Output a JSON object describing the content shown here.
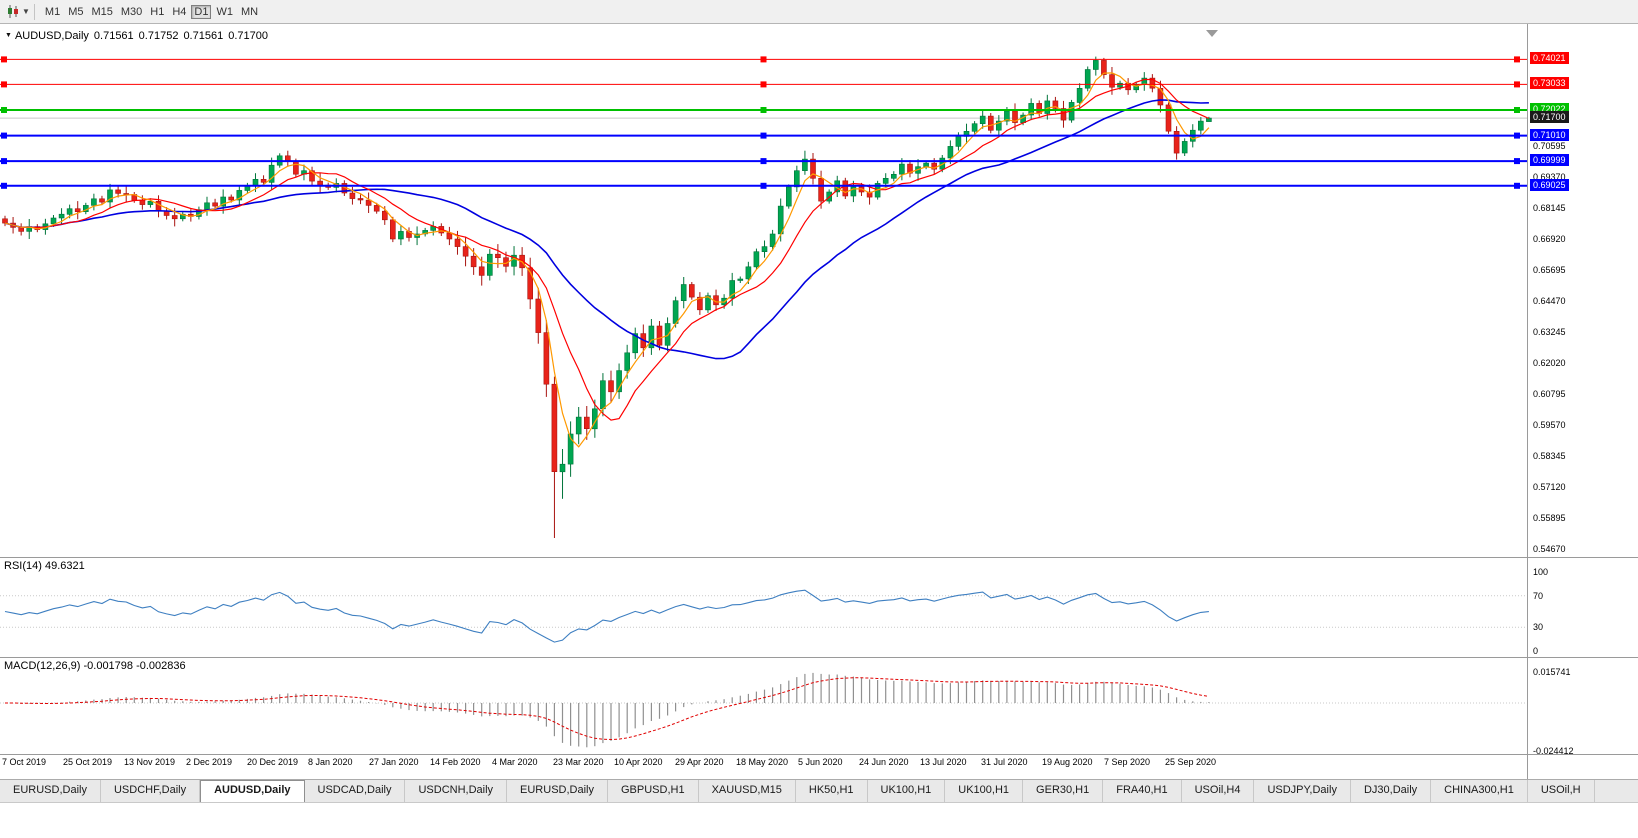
{
  "toolbar": {
    "chart_tool_icon": "candlestick-chart-icon",
    "dropdown_icon": "chevron-down-icon",
    "timeframes": [
      "M1",
      "M5",
      "M15",
      "M30",
      "H1",
      "H4",
      "D1",
      "W1",
      "MN"
    ],
    "selected_timeframe": "D1"
  },
  "chart_data": {
    "type": "candlestick",
    "title": "AUDUSD,Daily",
    "ohlc_display": {
      "open": "0.71561",
      "high": "0.71752",
      "low": "0.71561",
      "close": "0.71700"
    },
    "price_range_visible": [
      0.5431,
      0.7542
    ],
    "current_price": 0.717,
    "current_price_label": "0.71700",
    "current_price_badge_color": "#1a1a1a",
    "bull_color": "#00A651",
    "bear_color": "#E8231A",
    "horizontal_lines": [
      {
        "price": 0.74021,
        "label": "0.74021",
        "color": "#FF0000",
        "width": 1
      },
      {
        "price": 0.73033,
        "label": "0.73033",
        "color": "#FF0000",
        "width": 1
      },
      {
        "price": 0.72022,
        "label": "0.72022",
        "color": "#00C000",
        "width": 2
      },
      {
        "price": 0.7101,
        "label": "0.71010",
        "color": "#0000FF",
        "width": 2
      },
      {
        "price": 0.69999,
        "label": "0.69999",
        "color": "#0000FF",
        "width": 2
      },
      {
        "price": 0.69025,
        "label": "0.69025",
        "color": "#0000FF",
        "width": 2
      }
    ],
    "price_axis_ticks": [
      "0.70595",
      "0.69370",
      "0.68145",
      "0.66920",
      "0.65695",
      "0.64470",
      "0.63245",
      "0.62020",
      "0.60795",
      "0.59570",
      "0.58345",
      "0.57120",
      "0.55895",
      "0.54670"
    ],
    "x_axis_labels": [
      "7 Oct 2019",
      "25 Oct 2019",
      "13 Nov 2019",
      "2 Dec 2019",
      "20 Dec 2019",
      "8 Jan 2020",
      "27 Jan 2020",
      "14 Feb 2020",
      "4 Mar 2020",
      "23 Mar 2020",
      "10 Apr 2020",
      "29 Apr 2020",
      "18 May 2020",
      "5 Jun 2020",
      "24 Jun 2020",
      "13 Jul 2020",
      "31 Jul 2020",
      "19 Aug 2020",
      "7 Sep 2020",
      "25 Sep 2020"
    ],
    "moving_averages": [
      {
        "name": "slow-ma",
        "period": 24,
        "color": "#0000E0",
        "width": 1.6
      },
      {
        "name": "medium-ma",
        "period": 9,
        "color": "#FF0000",
        "width": 1.2
      },
      {
        "name": "fast-ma",
        "period": 4,
        "color": "#FF9900",
        "width": 1.2
      }
    ],
    "rsi": {
      "label": "RSI(14)",
      "value_display": "49.6321",
      "period": 14,
      "levels": [
        100,
        70,
        30,
        0
      ],
      "color": "#3E7FC1"
    },
    "macd": {
      "label": "MACD(12,26,9)",
      "macd_display": "-0.001798",
      "signal_display": "-0.002836",
      "fast": 12,
      "slow": 26,
      "signal_period": 9,
      "scale_max": 0.015741,
      "scale_min": -0.024412,
      "scale_max_label": "0.015741",
      "scale_min_label": "-0.024412",
      "histogram_color": "#909090",
      "signal_color": "#E00000"
    },
    "ohlc": [
      [
        0.6772,
        0.6784,
        0.6743,
        0.6755
      ],
      [
        0.6755,
        0.6779,
        0.6714,
        0.6738
      ],
      [
        0.6738,
        0.6754,
        0.6706,
        0.6722
      ],
      [
        0.6722,
        0.6771,
        0.6692,
        0.6741
      ],
      [
        0.6741,
        0.6751,
        0.6719,
        0.6729
      ],
      [
        0.6729,
        0.6772,
        0.6709,
        0.6752
      ],
      [
        0.6752,
        0.6787,
        0.674,
        0.6775
      ],
      [
        0.6775,
        0.6814,
        0.6751,
        0.679
      ],
      [
        0.679,
        0.6828,
        0.6774,
        0.6812
      ],
      [
        0.6812,
        0.6842,
        0.677,
        0.68
      ],
      [
        0.68,
        0.6835,
        0.679,
        0.6825
      ],
      [
        0.6825,
        0.6871,
        0.6805,
        0.6851
      ],
      [
        0.6851,
        0.6863,
        0.6826,
        0.6838
      ],
      [
        0.6838,
        0.691,
        0.6814,
        0.6886
      ],
      [
        0.6886,
        0.6902,
        0.6856,
        0.6872
      ],
      [
        0.6872,
        0.6902,
        0.6838,
        0.6868
      ],
      [
        0.6868,
        0.6878,
        0.6835,
        0.6845
      ],
      [
        0.6845,
        0.6865,
        0.6808,
        0.6828
      ],
      [
        0.6828,
        0.6853,
        0.6816,
        0.6841
      ],
      [
        0.6841,
        0.6865,
        0.6778,
        0.6802
      ],
      [
        0.6802,
        0.6818,
        0.6769,
        0.6785
      ],
      [
        0.6785,
        0.6815,
        0.6742,
        0.6772
      ],
      [
        0.6772,
        0.68,
        0.6762,
        0.679
      ],
      [
        0.679,
        0.681,
        0.6761,
        0.6781
      ],
      [
        0.6781,
        0.682,
        0.6769,
        0.6808
      ],
      [
        0.6808,
        0.6859,
        0.6784,
        0.6835
      ],
      [
        0.6835,
        0.6851,
        0.6806,
        0.6822
      ],
      [
        0.6822,
        0.6888,
        0.6792,
        0.6858
      ],
      [
        0.6858,
        0.6868,
        0.6836,
        0.6846
      ],
      [
        0.6846,
        0.6904,
        0.6826,
        0.6884
      ],
      [
        0.6884,
        0.6914,
        0.6872,
        0.6902
      ],
      [
        0.6902,
        0.6952,
        0.6878,
        0.6928
      ],
      [
        0.6928,
        0.6944,
        0.69,
        0.6916
      ],
      [
        0.6916,
        0.7014,
        0.6886,
        0.6984
      ],
      [
        0.6984,
        0.7031,
        0.6974,
        0.7021
      ],
      [
        0.7021,
        0.7041,
        0.6978,
        0.6998
      ],
      [
        0.6998,
        0.701,
        0.6936,
        0.6948
      ],
      [
        0.6948,
        0.6986,
        0.6924,
        0.6962
      ],
      [
        0.6962,
        0.6978,
        0.6905,
        0.6921
      ],
      [
        0.6921,
        0.6951,
        0.6875,
        0.6905
      ],
      [
        0.6905,
        0.6915,
        0.6886,
        0.6896
      ],
      [
        0.6896,
        0.6932,
        0.6876,
        0.6912
      ],
      [
        0.6912,
        0.6924,
        0.6862,
        0.6874
      ],
      [
        0.6874,
        0.6898,
        0.6828,
        0.6852
      ],
      [
        0.6852,
        0.6868,
        0.683,
        0.6846
      ],
      [
        0.6846,
        0.6876,
        0.6795,
        0.6825
      ],
      [
        0.6825,
        0.6835,
        0.6792,
        0.6802
      ],
      [
        0.6802,
        0.6822,
        0.6748,
        0.6768
      ],
      [
        0.6768,
        0.678,
        0.668,
        0.6692
      ],
      [
        0.6692,
        0.6746,
        0.6668,
        0.6722
      ],
      [
        0.6722,
        0.6738,
        0.6682,
        0.6698
      ],
      [
        0.6698,
        0.6742,
        0.6668,
        0.6712
      ],
      [
        0.6712,
        0.6736,
        0.6702,
        0.6726
      ],
      [
        0.6726,
        0.6762,
        0.6706,
        0.6742
      ],
      [
        0.6742,
        0.6754,
        0.6704,
        0.6716
      ],
      [
        0.6716,
        0.674,
        0.6668,
        0.6692
      ],
      [
        0.6692,
        0.6724,
        0.663,
        0.6662
      ],
      [
        0.6662,
        0.6702,
        0.6584,
        0.6624
      ],
      [
        0.6624,
        0.6656,
        0.655,
        0.6582
      ],
      [
        0.6582,
        0.6622,
        0.6508,
        0.6548
      ],
      [
        0.6548,
        0.6652,
        0.6528,
        0.6632
      ],
      [
        0.6632,
        0.6672,
        0.6578,
        0.6618
      ],
      [
        0.6618,
        0.6642,
        0.656,
        0.6584
      ],
      [
        0.6584,
        0.6664,
        0.6548,
        0.6628
      ],
      [
        0.6628,
        0.666,
        0.6546,
        0.6578
      ],
      [
        0.6578,
        0.6618,
        0.6415,
        0.6455
      ],
      [
        0.6455,
        0.6499,
        0.6278,
        0.6322
      ],
      [
        0.6322,
        0.6372,
        0.6068,
        0.6118
      ],
      [
        0.6118,
        0.6148,
        0.551,
        0.5772
      ],
      [
        0.5772,
        0.5862,
        0.5665,
        0.5802
      ],
      [
        0.5802,
        0.5971,
        0.5752,
        0.5921
      ],
      [
        0.5921,
        0.6028,
        0.5881,
        0.5988
      ],
      [
        0.5988,
        0.6032,
        0.5898,
        0.5942
      ],
      [
        0.5942,
        0.6057,
        0.5906,
        0.6021
      ],
      [
        0.6021,
        0.6162,
        0.5991,
        0.6132
      ],
      [
        0.6132,
        0.6172,
        0.6048,
        0.6088
      ],
      [
        0.6088,
        0.62,
        0.606,
        0.6172
      ],
      [
        0.6172,
        0.6274,
        0.614,
        0.6242
      ],
      [
        0.6242,
        0.6342,
        0.6218,
        0.6318
      ],
      [
        0.6318,
        0.6354,
        0.6226,
        0.6262
      ],
      [
        0.6262,
        0.6376,
        0.6234,
        0.6348
      ],
      [
        0.6348,
        0.6368,
        0.6252,
        0.6272
      ],
      [
        0.6272,
        0.6382,
        0.6248,
        0.6358
      ],
      [
        0.6358,
        0.6464,
        0.6342,
        0.6448
      ],
      [
        0.6448,
        0.6542,
        0.6418,
        0.6512
      ],
      [
        0.6512,
        0.6522,
        0.6452,
        0.6462
      ],
      [
        0.6462,
        0.6482,
        0.6392,
        0.6412
      ],
      [
        0.6412,
        0.648,
        0.64,
        0.6468
      ],
      [
        0.6468,
        0.6492,
        0.6408,
        0.6432
      ],
      [
        0.6432,
        0.6474,
        0.6416,
        0.6458
      ],
      [
        0.6458,
        0.6558,
        0.6428,
        0.6528
      ],
      [
        0.6528,
        0.6544,
        0.6518,
        0.6534
      ],
      [
        0.6534,
        0.6602,
        0.6514,
        0.6582
      ],
      [
        0.6582,
        0.6654,
        0.657,
        0.6642
      ],
      [
        0.6642,
        0.6686,
        0.6618,
        0.6662
      ],
      [
        0.6662,
        0.6728,
        0.6646,
        0.6712
      ],
      [
        0.6712,
        0.6852,
        0.6682,
        0.6822
      ],
      [
        0.6822,
        0.6908,
        0.6812,
        0.6898
      ],
      [
        0.6898,
        0.6982,
        0.6878,
        0.6962
      ],
      [
        0.6962,
        0.7041,
        0.6946,
        0.7008
      ],
      [
        0.7008,
        0.7032,
        0.6908,
        0.6932
      ],
      [
        0.6932,
        0.6962,
        0.6812,
        0.6842
      ],
      [
        0.6842,
        0.6888,
        0.6832,
        0.6878
      ],
      [
        0.6878,
        0.6942,
        0.6858,
        0.6922
      ],
      [
        0.6922,
        0.6934,
        0.685,
        0.6862
      ],
      [
        0.6862,
        0.6922,
        0.6838,
        0.6898
      ],
      [
        0.6898,
        0.6914,
        0.6862,
        0.6878
      ],
      [
        0.6878,
        0.6908,
        0.6828,
        0.6858
      ],
      [
        0.6858,
        0.6922,
        0.6848,
        0.6912
      ],
      [
        0.6912,
        0.6952,
        0.6892,
        0.6932
      ],
      [
        0.6932,
        0.696,
        0.692,
        0.6948
      ],
      [
        0.6948,
        0.7012,
        0.6924,
        0.6988
      ],
      [
        0.6988,
        0.7004,
        0.6936,
        0.6952
      ],
      [
        0.6952,
        0.7008,
        0.6922,
        0.6978
      ],
      [
        0.6978,
        0.7002,
        0.6968,
        0.6992
      ],
      [
        0.6992,
        0.7012,
        0.6948,
        0.6968
      ],
      [
        0.6968,
        0.7024,
        0.6956,
        0.7012
      ],
      [
        0.7012,
        0.7082,
        0.6988,
        0.7058
      ],
      [
        0.7058,
        0.7114,
        0.7042,
        0.7098
      ],
      [
        0.7098,
        0.7148,
        0.7068,
        0.7118
      ],
      [
        0.7118,
        0.7158,
        0.7108,
        0.7148
      ],
      [
        0.7148,
        0.7198,
        0.7128,
        0.7178
      ],
      [
        0.7178,
        0.719,
        0.711,
        0.7122
      ],
      [
        0.7122,
        0.7182,
        0.7098,
        0.7158
      ],
      [
        0.7158,
        0.7214,
        0.7142,
        0.7198
      ],
      [
        0.7198,
        0.7228,
        0.7122,
        0.7152
      ],
      [
        0.7152,
        0.7192,
        0.7142,
        0.7182
      ],
      [
        0.7182,
        0.7248,
        0.7162,
        0.7228
      ],
      [
        0.7228,
        0.724,
        0.7176,
        0.7188
      ],
      [
        0.7188,
        0.7262,
        0.7164,
        0.7238
      ],
      [
        0.7238,
        0.7254,
        0.7192,
        0.7208
      ],
      [
        0.7208,
        0.7238,
        0.7132,
        0.7162
      ],
      [
        0.7162,
        0.7242,
        0.7152,
        0.7232
      ],
      [
        0.7232,
        0.7308,
        0.7212,
        0.7288
      ],
      [
        0.7288,
        0.7374,
        0.7276,
        0.7362
      ],
      [
        0.7362,
        0.7413,
        0.7338,
        0.7398
      ],
      [
        0.7398,
        0.7408,
        0.7326,
        0.7342
      ],
      [
        0.7342,
        0.7372,
        0.7262,
        0.7292
      ],
      [
        0.7292,
        0.7318,
        0.7282,
        0.7308
      ],
      [
        0.7308,
        0.7328,
        0.7262,
        0.7282
      ],
      [
        0.7282,
        0.7314,
        0.727,
        0.7302
      ],
      [
        0.7302,
        0.7352,
        0.7278,
        0.7328
      ],
      [
        0.7328,
        0.7344,
        0.7272,
        0.7288
      ],
      [
        0.7288,
        0.7318,
        0.7192,
        0.7222
      ],
      [
        0.7222,
        0.7232,
        0.7108,
        0.7118
      ],
      [
        0.7118,
        0.7138,
        0.7006,
        0.7032
      ],
      [
        0.7032,
        0.709,
        0.702,
        0.7078
      ],
      [
        0.7078,
        0.7146,
        0.7054,
        0.7122
      ],
      [
        0.7122,
        0.7174,
        0.7106,
        0.7158
      ],
      [
        0.7156,
        0.7175,
        0.7156,
        0.717
      ]
    ]
  },
  "tabs": {
    "active_index": 2,
    "items": [
      "EURUSD,Daily",
      "USDCHF,Daily",
      "AUDUSD,Daily",
      "USDCAD,Daily",
      "USDCNH,Daily",
      "EURUSD,Daily",
      "GBPUSD,H1",
      "XAUUSD,M15",
      "HK50,H1",
      "UK100,H1",
      "UK100,H1",
      "GER30,H1",
      "FRA40,H1",
      "USOil,H4",
      "USDJPY,Daily",
      "DJ30,Daily",
      "CHINA300,H1",
      "USOil,H"
    ]
  }
}
